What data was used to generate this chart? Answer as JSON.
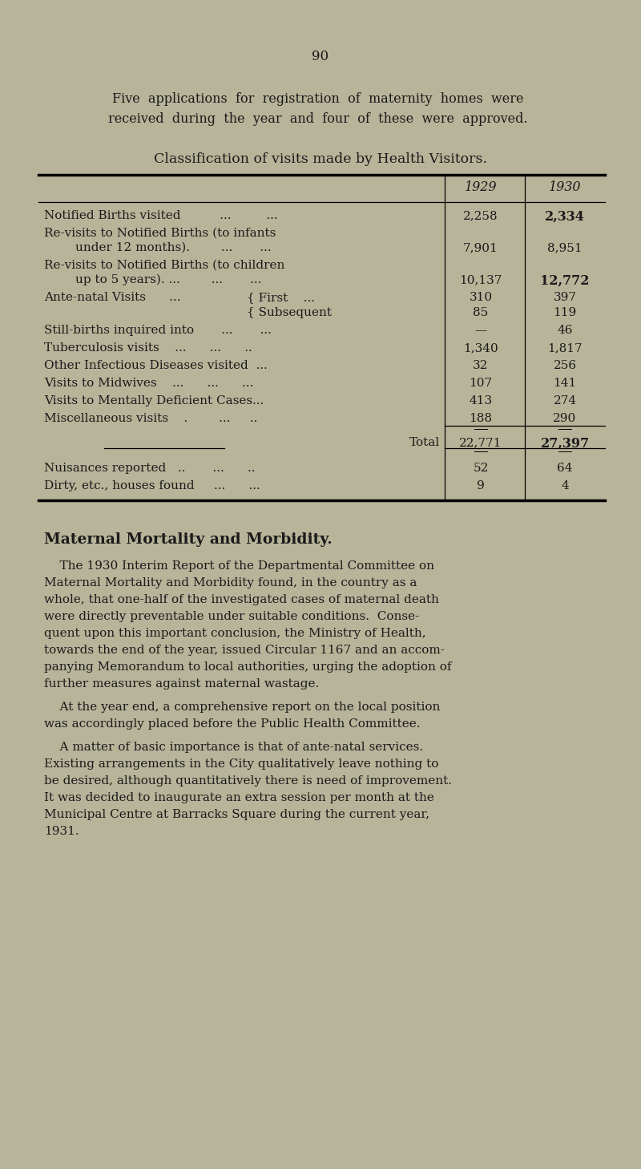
{
  "bg_color": "#b8b49a",
  "text_color": "#1a1a1a",
  "page_number": "90",
  "intro_line1": "Five  applications  for  registration  of  maternity  homes  were",
  "intro_line2": "received  during  the  year  and  four  of  these  were  approved.",
  "table_title": "Classification of visits made by Health Visitors.",
  "col_header1": "1929",
  "col_header2": "1930",
  "rows": [
    [
      "Notified Births visited          ...         ...",
      "2,258",
      "2,334",
      false
    ],
    [
      "Re-visits to Notified Births (to infants",
      "",
      "",
      false
    ],
    [
      "        under 12 months).        ...       ...",
      "7,901",
      "8,951",
      false
    ],
    [
      "Re-visits to Notified Births (to children",
      "",
      "",
      false
    ],
    [
      "        up to 5 years). ...        ...       ...",
      "10,137",
      "12,772",
      false
    ],
    [
      "Ante-natal Visits      ...{ First    ...",
      "310",
      "397",
      false
    ],
    [
      "                               { Subsequent",
      "85",
      "119",
      false
    ],
    [
      "Still-births inquired into       ...       ...",
      "—",
      "46",
      false
    ],
    [
      "Tuberculosis visits    ...      ...      ..",
      "1,340",
      "1,817",
      false
    ],
    [
      "Other Infectious Diseases visited  ...",
      "32",
      "256",
      false
    ],
    [
      "Visits to Midwives    ...      ...      ...",
      "107",
      "141",
      false
    ],
    [
      "Visits to Mentally Deficient Cases...",
      "413",
      "274",
      false
    ],
    [
      "Miscellaneous visits   .         ...      ..",
      "188",
      "290",
      false
    ]
  ],
  "total": [
    "Total",
    "22,771",
    "27,397"
  ],
  "extra_rows": [
    [
      "Nuisances reported   ..       ...      ..",
      "52",
      "64"
    ],
    [
      "Dirty, etc., houses found     ...      ...",
      "9",
      "4"
    ]
  ],
  "section_heading": "Maternal Mortality and Morbidity.",
  "para1": "The 1930 Interim Report of the Departmental Committee on Maternal Mortality and Morbidity found, in the country as a whole, that one-half of the investigated cases of maternal death were directly preventable under suitable conditions.  Conse-quent upon this important conclusion, the Ministry of Health, towards the end of the year, issued Circular 1167 and an accom-panying Memorandum to local authorities, urging the adoption of further measures against maternal wastage.",
  "para2": "At the year end, a comprehensive report on the local position was accordingly placed before the Public Health Committee.",
  "para3": "A matter of basic importance is that of ante-natal services. Existing arrangements in the City qualitatively leave nothing to be desired, although quantitatively there is need of improvement. It was decided to inaugurate an extra session per month at the Municipal Centre at Barracks Square during the current year, 1931."
}
